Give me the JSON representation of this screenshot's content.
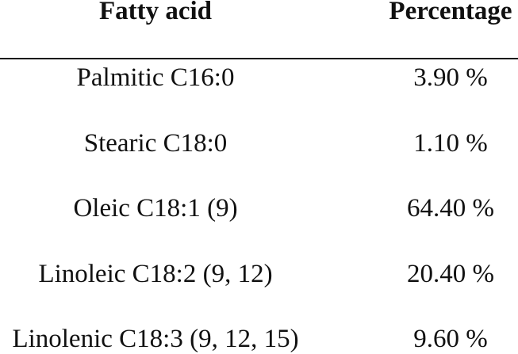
{
  "table": {
    "headers": [
      "Fatty acid",
      "Percentage"
    ],
    "rows": [
      {
        "fatty_acid": "Palmitic C16:0",
        "percentage": "3.90 %"
      },
      {
        "fatty_acid": "Stearic C18:0",
        "percentage": "1.10 %"
      },
      {
        "fatty_acid": "Oleic C18:1 (9)",
        "percentage": "64.40 %"
      },
      {
        "fatty_acid": "Linoleic C18:2 (9, 12)",
        "percentage": "20.40 %"
      },
      {
        "fatty_acid": "Linolenic C18:3 (9, 12, 15)",
        "percentage": "9.60 %"
      }
    ]
  }
}
